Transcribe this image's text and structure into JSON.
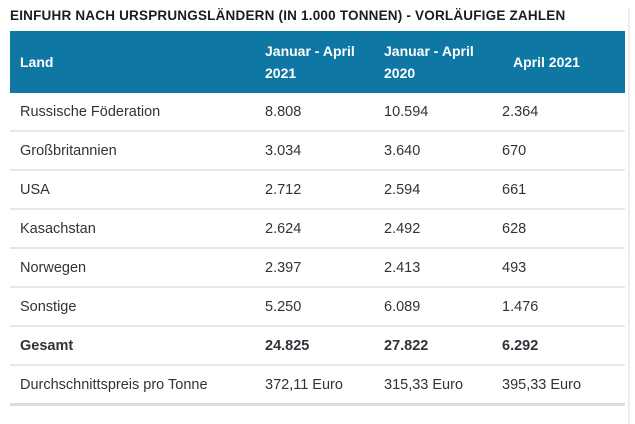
{
  "page": {
    "title": "EINFUHR NACH URSPRUNGSLÄNDERN (IN 1.000 TONNEN) - VORLÄUFIGE ZAHLEN"
  },
  "colors": {
    "header_bg": "#0F77A4",
    "header_text": "#FFFFFF",
    "title_text": "#1D1B20",
    "body_text": "#32323A",
    "row_divider": "#E7E7E7",
    "bottom_border": "#DCDCDC",
    "edge_line": "#EDEDED"
  },
  "table": {
    "columns": [
      {
        "key": "land",
        "label": "Land"
      },
      {
        "key": "jan_apr_2021",
        "label": "Januar - April 2021"
      },
      {
        "key": "jan_apr_2020",
        "label": "Januar - April 2020"
      },
      {
        "key": "apr_2021",
        "label": "April 2021"
      }
    ],
    "rows": [
      {
        "land": "Russische Föderation",
        "jan_apr_2021": "8.808",
        "jan_apr_2020": "10.594",
        "apr_2021": "2.364",
        "bold": false
      },
      {
        "land": "Großbritannien",
        "jan_apr_2021": "3.034",
        "jan_apr_2020": "3.640",
        "apr_2021": "670",
        "bold": false
      },
      {
        "land": "USA",
        "jan_apr_2021": "2.712",
        "jan_apr_2020": "2.594",
        "apr_2021": "661",
        "bold": false
      },
      {
        "land": "Kasachstan",
        "jan_apr_2021": "2.624",
        "jan_apr_2020": "2.492",
        "apr_2021": "628",
        "bold": false
      },
      {
        "land": "Norwegen",
        "jan_apr_2021": "2.397",
        "jan_apr_2020": "2.413",
        "apr_2021": "493",
        "bold": false
      },
      {
        "land": "Sonstige",
        "jan_apr_2021": "5.250",
        "jan_apr_2020": "6.089",
        "apr_2021": "1.476",
        "bold": false
      },
      {
        "land": "Gesamt",
        "jan_apr_2021": "24.825",
        "jan_apr_2020": "27.822",
        "apr_2021": "6.292",
        "bold": true
      },
      {
        "land": "Durchschnittspreis pro Tonne",
        "jan_apr_2021": "372,11 Euro",
        "jan_apr_2020": "315,33 Euro",
        "apr_2021": "395,33 Euro",
        "bold": false
      }
    ]
  },
  "chart_data": {
    "type": "table",
    "title": "EINFUHR NACH URSPRUNGSLÄNDERN (IN 1.000 TONNEN) - VORLÄUFIGE ZAHLEN",
    "columns": [
      "Land",
      "Januar - April 2021",
      "Januar - April 2020",
      "April 2021"
    ],
    "rows": [
      [
        "Russische Föderation",
        8808,
        10594,
        2364
      ],
      [
        "Großbritannien",
        3034,
        3640,
        670
      ],
      [
        "USA",
        2712,
        2594,
        661
      ],
      [
        "Kasachstan",
        2624,
        2492,
        628
      ],
      [
        "Norwegen",
        2397,
        2413,
        493
      ],
      [
        "Sonstige",
        5250,
        6089,
        1476
      ],
      [
        "Gesamt",
        24825,
        27822,
        6292
      ],
      [
        "Durchschnittspreis pro Tonne",
        "372,11 Euro",
        "315,33 Euro",
        "395,33 Euro"
      ]
    ]
  }
}
